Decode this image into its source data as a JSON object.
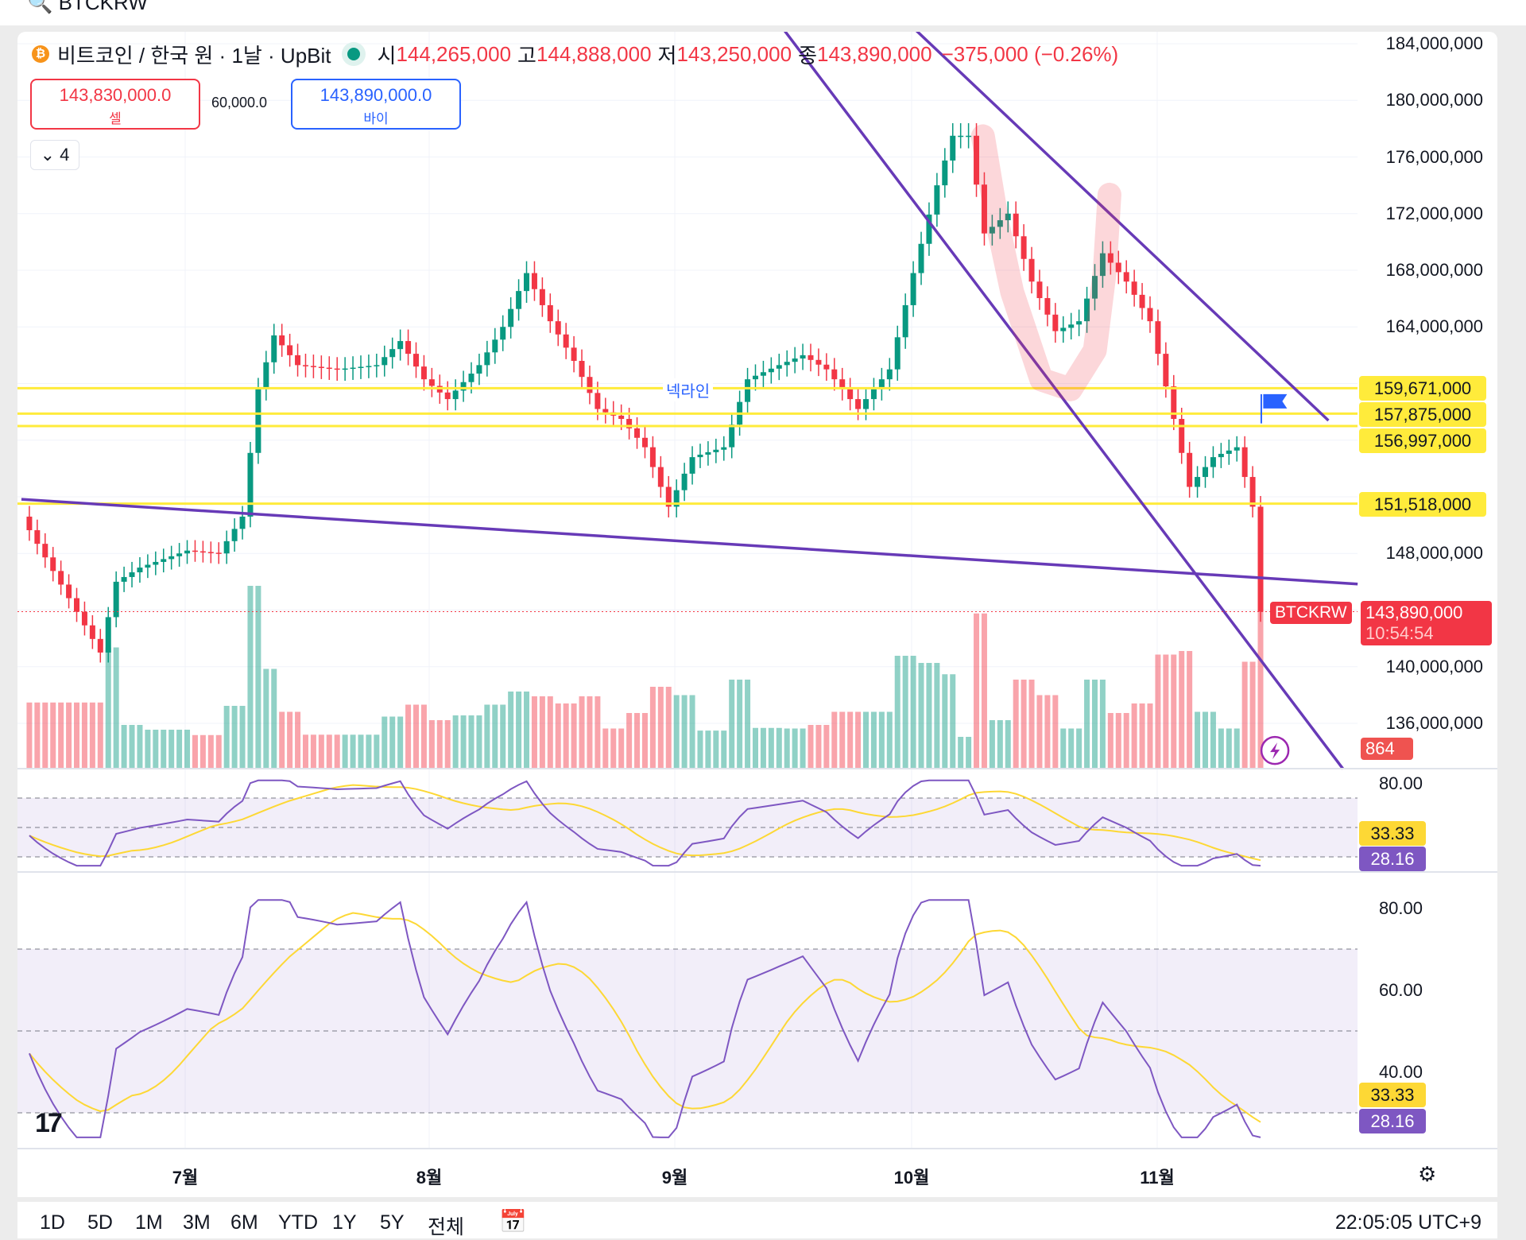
{
  "toolbar": {
    "symbol": "BTCKRW"
  },
  "legend": {
    "title": "비트코인 / 한국 원 · 1날 · UpBit",
    "open_label": "시",
    "open": "144,265,000",
    "high_label": "고",
    "high": "144,888,000",
    "low_label": "저",
    "low": "143,250,000",
    "close_label": "종",
    "close": "143,890,000",
    "change": "−375,000 (−0.26%)"
  },
  "trade": {
    "sell_price": "143,830,000.0",
    "sell_label": "셀",
    "spread": "60,000.0",
    "buy_price": "143,890,000.0",
    "buy_label": "바이"
  },
  "indicators_toggle": "4",
  "price_axis": [
    "184,000,000",
    "180,000,000",
    "176,000,000",
    "172,000,000",
    "168,000,000",
    "164,000,000",
    "148,000,000",
    "140,000,000",
    "136,000,000"
  ],
  "levels": [
    {
      "value": 159.671,
      "label": "159,671,000"
    },
    {
      "value": 157.875,
      "label": "157,875,000"
    },
    {
      "value": 156.997,
      "label": "156,997,000"
    },
    {
      "value": 151.518,
      "label": "151,518,000"
    }
  ],
  "neckline_label": "넥라인",
  "current": {
    "symbol": "BTCKRW",
    "price": "143,890,000",
    "countdown": "10:54:54",
    "volume": "864"
  },
  "rsi_axis": [
    "80.00"
  ],
  "rsi2_axis": [
    "80.00",
    "60.00",
    "40.00"
  ],
  "rsi_values": {
    "ma": "33.33",
    "rsi": "28.16"
  },
  "months": [
    "7월",
    "8월",
    "9월",
    "10월",
    "11월"
  ],
  "ranges": [
    "1D",
    "5D",
    "1M",
    "3M",
    "6M",
    "YTD",
    "1Y",
    "5Y",
    "전체"
  ],
  "clock": "22:05:05 UTC+9",
  "colors": {
    "up": "#089981",
    "down": "#f23645",
    "level": "#ffeb3b",
    "trend": "#673ab7",
    "rsi": "#7e57c2",
    "rsi_ma": "#fdd835"
  },
  "chart_data": {
    "type": "candlestick",
    "unit": "million KRW",
    "ylim": [
      134,
      185
    ],
    "closes": [
      [
        "06-10",
        150.6
      ],
      [
        "06-15",
        145.8
      ],
      [
        "06-20",
        141
      ],
      [
        "06-22",
        146
      ],
      [
        "06-25",
        147
      ],
      [
        "07-01",
        148.2
      ],
      [
        "07-05",
        148
      ],
      [
        "07-08",
        150.6
      ],
      [
        "07-10",
        159.6
      ],
      [
        "07-12",
        163.4
      ],
      [
        "07-15",
        161.3
      ],
      [
        "07-20",
        161
      ],
      [
        "07-25",
        161.3
      ],
      [
        "07-28",
        163
      ],
      [
        "07-31",
        160.3
      ],
      [
        "08-03",
        158.9
      ],
      [
        "08-07",
        161.3
      ],
      [
        "08-10",
        164
      ],
      [
        "08-13",
        167.8
      ],
      [
        "08-16",
        164.4
      ],
      [
        "08-19",
        161.6
      ],
      [
        "08-22",
        158.2
      ],
      [
        "08-25",
        157.5
      ],
      [
        "08-28",
        155.5
      ],
      [
        "08-31",
        151.3
      ],
      [
        "09-03",
        154.8
      ],
      [
        "09-07",
        155.5
      ],
      [
        "09-10",
        160.3
      ],
      [
        "09-14",
        161.3
      ],
      [
        "09-17",
        162
      ],
      [
        "09-20",
        161
      ],
      [
        "09-24",
        158.2
      ],
      [
        "09-28",
        161
      ],
      [
        "10-01",
        167.8
      ],
      [
        "10-04",
        174
      ],
      [
        "10-06",
        177.5
      ],
      [
        "10-08",
        177.5
      ],
      [
        "10-10",
        170.6
      ],
      [
        "10-13",
        172
      ],
      [
        "10-16",
        167.2
      ],
      [
        "10-19",
        163.7
      ],
      [
        "10-22",
        164.4
      ],
      [
        "10-25",
        169.2
      ],
      [
        "10-28",
        167.2
      ],
      [
        "10-31",
        164.4
      ],
      [
        "11-03",
        157.5
      ],
      [
        "11-05",
        152.7
      ],
      [
        "11-08",
        154.8
      ],
      [
        "11-11",
        155.5
      ],
      [
        "11-13",
        151.3
      ],
      [
        "11-14",
        143.89
      ]
    ]
  }
}
